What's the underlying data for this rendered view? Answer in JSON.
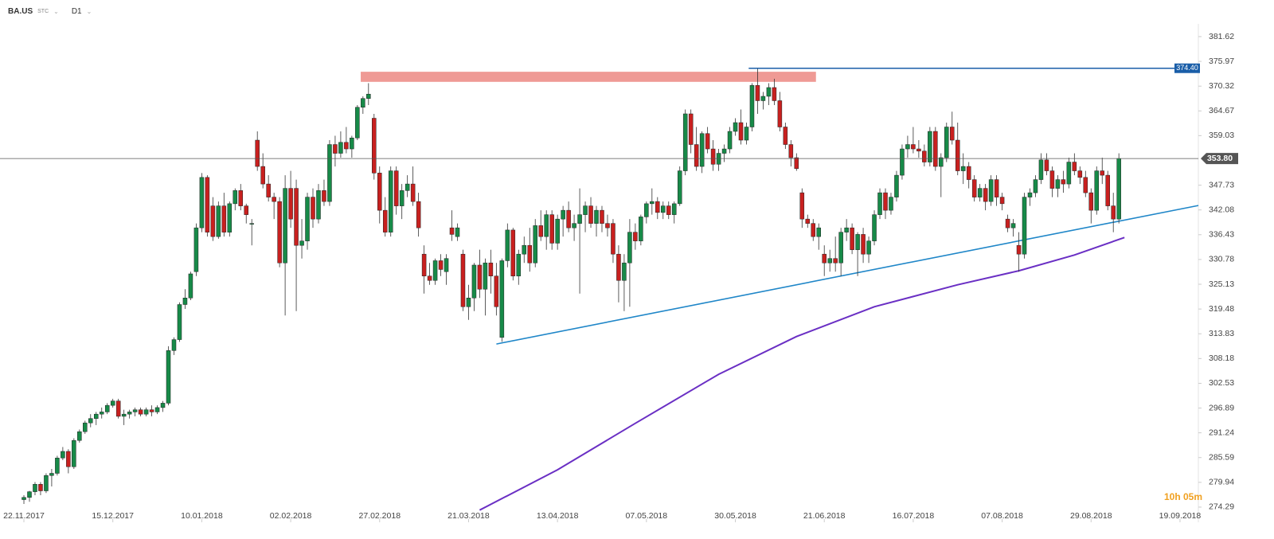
{
  "header": {
    "symbol": "BA.US",
    "tag": "STC",
    "timeframe": "D1"
  },
  "timer": "10h 05m",
  "chart_data": {
    "type": "candlestick",
    "up_color": "#178a48",
    "down_color": "#c8201f",
    "xlim": [
      -4.3,
      211.3
    ],
    "ylim": [
      270.83,
      389.97
    ],
    "xticks": [
      {
        "value": 0,
        "label": "22.11.2017"
      },
      {
        "value": 16,
        "label": "15.12.2017"
      },
      {
        "value": 32,
        "label": "10.01.2018"
      },
      {
        "value": 48,
        "label": "02.02.2018"
      },
      {
        "value": 64,
        "label": "27.02.2018"
      },
      {
        "value": 80,
        "label": "21.03.2018"
      },
      {
        "value": 96,
        "label": "13.04.2018"
      },
      {
        "value": 112,
        "label": "07.05.2018"
      },
      {
        "value": 128,
        "label": "30.05.2018"
      },
      {
        "value": 144,
        "label": "21.06.2018"
      },
      {
        "value": 160,
        "label": "16.07.2018"
      },
      {
        "value": 176,
        "label": "07.08.2018"
      },
      {
        "value": 192,
        "label": "29.08.2018"
      },
      {
        "value": 208,
        "label": "19.09.2018"
      }
    ],
    "yticks": [
      381.62,
      375.97,
      370.32,
      364.67,
      359.03,
      347.73,
      342.08,
      336.43,
      330.78,
      325.13,
      319.48,
      313.83,
      308.18,
      302.53,
      296.89,
      291.24,
      285.59,
      279.94,
      274.29
    ],
    "candles": [
      [
        276,
        277,
        275,
        276.5
      ],
      [
        276.5,
        278,
        275.5,
        277.8
      ],
      [
        277.8,
        280,
        277,
        279.5
      ],
      [
        279.5,
        280,
        277,
        278
      ],
      [
        278,
        282,
        277.5,
        281.5
      ],
      [
        281.5,
        283,
        279,
        282
      ],
      [
        282,
        286,
        281.5,
        285.5
      ],
      [
        285.5,
        288,
        285,
        287
      ],
      [
        287,
        287.5,
        282,
        283.5
      ],
      [
        283.5,
        290,
        283,
        289.5
      ],
      [
        289.5,
        292,
        289,
        291.5
      ],
      [
        291.5,
        294,
        291,
        293.5
      ],
      [
        293.5,
        295.5,
        292.5,
        294.5
      ],
      [
        294.5,
        296,
        293,
        295.5
      ],
      [
        295.5,
        297,
        294.5,
        296
      ],
      [
        296,
        298,
        295.5,
        297.5
      ],
      [
        297.5,
        299,
        297,
        298.5
      ],
      [
        298.5,
        299,
        294.5,
        295
      ],
      [
        295,
        296.5,
        293,
        295.5
      ],
      [
        295.5,
        296.5,
        294.5,
        296
      ],
      [
        296,
        297,
        295,
        296.5
      ],
      [
        296.5,
        297,
        295,
        295.5
      ],
      [
        295.5,
        297,
        295,
        296.5
      ],
      [
        296.5,
        297.5,
        295,
        296
      ],
      [
        296,
        297.5,
        295.5,
        297
      ],
      [
        297,
        298.5,
        296,
        298
      ],
      [
        298,
        311,
        297.5,
        310
      ],
      [
        310,
        313,
        309,
        312.5
      ],
      [
        312.5,
        321,
        312,
        320.5
      ],
      [
        320.5,
        324,
        319.5,
        322
      ],
      [
        322,
        328,
        321.5,
        327.5
      ],
      [
        328,
        339,
        327,
        338
      ],
      [
        338,
        350.5,
        337,
        349.5
      ],
      [
        349.5,
        350,
        336,
        337
      ],
      [
        343,
        345,
        335,
        336
      ],
      [
        336,
        344,
        335.5,
        343
      ],
      [
        343,
        346,
        336,
        337
      ],
      [
        337,
        344,
        336,
        343.5
      ],
      [
        343.5,
        347,
        342,
        346.5
      ],
      [
        346.5,
        348,
        342,
        343
      ],
      [
        343,
        343.5,
        339,
        341
      ],
      [
        339,
        340,
        334,
        339
      ],
      [
        358,
        360,
        351,
        352
      ],
      [
        352,
        355,
        347,
        348
      ],
      [
        348,
        350,
        344,
        345
      ],
      [
        345,
        346,
        340,
        344
      ],
      [
        344,
        345,
        329,
        330
      ],
      [
        330,
        350,
        318,
        347
      ],
      [
        347,
        351,
        338,
        340
      ],
      [
        347,
        349,
        319,
        334
      ],
      [
        334,
        340,
        331,
        335
      ],
      [
        335,
        346,
        333,
        345
      ],
      [
        345,
        347,
        338,
        340
      ],
      [
        340,
        348,
        339,
        346.5
      ],
      [
        346.5,
        349,
        343,
        344
      ],
      [
        344,
        358,
        343,
        357
      ],
      [
        357,
        359,
        352,
        355
      ],
      [
        355,
        360,
        354,
        357.5
      ],
      [
        357.5,
        361,
        355,
        356
      ],
      [
        356,
        359,
        354,
        358.5
      ],
      [
        358.5,
        366,
        358,
        365.5
      ],
      [
        365.5,
        368,
        364,
        367.5
      ],
      [
        367.5,
        371,
        366,
        368.5
      ],
      [
        363,
        364,
        349,
        350.5
      ],
      [
        350.5,
        352,
        339,
        342
      ],
      [
        342,
        345,
        336,
        337
      ],
      [
        337,
        352,
        336,
        351
      ],
      [
        351,
        352,
        341,
        343
      ],
      [
        343,
        348,
        340,
        346.5
      ],
      [
        346.5,
        350,
        345,
        348
      ],
      [
        348,
        352,
        343,
        344
      ],
      [
        344,
        346,
        336,
        338
      ],
      [
        332,
        334,
        323,
        327
      ],
      [
        327,
        330,
        325,
        326
      ],
      [
        326,
        331,
        325,
        330.5
      ],
      [
        330.5,
        332,
        327,
        328.5
      ],
      [
        328,
        332,
        325,
        331
      ],
      [
        338,
        342,
        335,
        336.5
      ],
      [
        336,
        339,
        335,
        338
      ],
      [
        332,
        333,
        319,
        320
      ],
      [
        320,
        325,
        317,
        322
      ],
      [
        322,
        330,
        319,
        329.5
      ],
      [
        329.5,
        333,
        322,
        324
      ],
      [
        324,
        331,
        318,
        330
      ],
      [
        330,
        333,
        323,
        327
      ],
      [
        327,
        330,
        318,
        320
      ],
      [
        313,
        331,
        312,
        330.5
      ],
      [
        330.5,
        339,
        329,
        337.5
      ],
      [
        337.5,
        338,
        326,
        327
      ],
      [
        327,
        333,
        325,
        332
      ],
      [
        332,
        336,
        330,
        334
      ],
      [
        334,
        338,
        328,
        330
      ],
      [
        330,
        340,
        329,
        338.5
      ],
      [
        338.5,
        342,
        335,
        336
      ],
      [
        336,
        342,
        333,
        341
      ],
      [
        341,
        342,
        333,
        334.5
      ],
      [
        334.5,
        341,
        333,
        340
      ],
      [
        340,
        343,
        336,
        342
      ],
      [
        342,
        344,
        337,
        338
      ],
      [
        338,
        341,
        335,
        339
      ],
      [
        339,
        347,
        323,
        341
      ],
      [
        341,
        344,
        337,
        343
      ],
      [
        343,
        345,
        338,
        339
      ],
      [
        339,
        343,
        336,
        342
      ],
      [
        342,
        343,
        337,
        339
      ],
      [
        339,
        341,
        336,
        338
      ],
      [
        339,
        340,
        330,
        332
      ],
      [
        332,
        334,
        321,
        326
      ],
      [
        326,
        332,
        319,
        330
      ],
      [
        330,
        340,
        320,
        337
      ],
      [
        337,
        339,
        333,
        335
      ],
      [
        335,
        341,
        334,
        340.5
      ],
      [
        340.5,
        344,
        339,
        343.5
      ],
      [
        343.5,
        347,
        341,
        344
      ],
      [
        344,
        345,
        340,
        341.5
      ],
      [
        341.5,
        344,
        340,
        343
      ],
      [
        343,
        344,
        340,
        341
      ],
      [
        341,
        344,
        339,
        343.5
      ],
      [
        343.5,
        352,
        343,
        351
      ],
      [
        351,
        365,
        350,
        364
      ],
      [
        364,
        365,
        355,
        357
      ],
      [
        357,
        361,
        351,
        352
      ],
      [
        352,
        360,
        350.5,
        359.5
      ],
      [
        359.5,
        361,
        355,
        356
      ],
      [
        356,
        358,
        351,
        352.5
      ],
      [
        352.5,
        356,
        351,
        355
      ],
      [
        355,
        357,
        353,
        356
      ],
      [
        356,
        361,
        355,
        360
      ],
      [
        360,
        363,
        359,
        362
      ],
      [
        362,
        365,
        357,
        358
      ],
      [
        358,
        362,
        357,
        361
      ],
      [
        361,
        371,
        360,
        370.5
      ],
      [
        370.5,
        374.4,
        364,
        367
      ],
      [
        367,
        369,
        365,
        368
      ],
      [
        368,
        371,
        366,
        370
      ],
      [
        370,
        372,
        366,
        367
      ],
      [
        367,
        369,
        360,
        361
      ],
      [
        361,
        362,
        356,
        357
      ],
      [
        357,
        358,
        352,
        354
      ],
      [
        354,
        355,
        351,
        351.5
      ],
      [
        346,
        347,
        338,
        340
      ],
      [
        340,
        341,
        338,
        339
      ],
      [
        339,
        340,
        335,
        336
      ],
      [
        336,
        339,
        333,
        338
      ],
      [
        332,
        334,
        327,
        330
      ],
      [
        330,
        333,
        328,
        331
      ],
      [
        331,
        336,
        328,
        330
      ],
      [
        330,
        338,
        327,
        337
      ],
      [
        337,
        340,
        335,
        338
      ],
      [
        338,
        339,
        332,
        333
      ],
      [
        333,
        337,
        327,
        336.5
      ],
      [
        336.5,
        338,
        330,
        332
      ],
      [
        332,
        336,
        330,
        335
      ],
      [
        335,
        342,
        334,
        341
      ],
      [
        341,
        347,
        340,
        346
      ],
      [
        346,
        347,
        340,
        342
      ],
      [
        342,
        346,
        341,
        345
      ],
      [
        345,
        351,
        344,
        350
      ],
      [
        350,
        357,
        349,
        356
      ],
      [
        356,
        359,
        354,
        357
      ],
      [
        357,
        361,
        355,
        356
      ],
      [
        356,
        358,
        354,
        355.5
      ],
      [
        355.5,
        357,
        352,
        353
      ],
      [
        353,
        361,
        352,
        360
      ],
      [
        360,
        361,
        351,
        352
      ],
      [
        352,
        355,
        345,
        354
      ],
      [
        354,
        362,
        353,
        361
      ],
      [
        361,
        364.5,
        357,
        358
      ],
      [
        358,
        362,
        350,
        351
      ],
      [
        351,
        355,
        348,
        352
      ],
      [
        352,
        353,
        347,
        349
      ],
      [
        349,
        350,
        344,
        345
      ],
      [
        345,
        348,
        344,
        347
      ],
      [
        347,
        348,
        342,
        344
      ],
      [
        344,
        350,
        343,
        349
      ],
      [
        349,
        350,
        343,
        345
      ],
      [
        345,
        346,
        342,
        343.5
      ],
      [
        340,
        341,
        337,
        338
      ],
      [
        338,
        340,
        336,
        339
      ],
      [
        334,
        337,
        328,
        332
      ],
      [
        332,
        346,
        331,
        345
      ],
      [
        345,
        347,
        343,
        346
      ],
      [
        346,
        350,
        345,
        349
      ],
      [
        349,
        355,
        348,
        353.5
      ],
      [
        353.5,
        355,
        350,
        351
      ],
      [
        351,
        352,
        345,
        347
      ],
      [
        347,
        350,
        345,
        349
      ],
      [
        349,
        351,
        346,
        348
      ],
      [
        348,
        354,
        347,
        353
      ],
      [
        353,
        355,
        350,
        351
      ],
      [
        351,
        352,
        348,
        349.5
      ],
      [
        349.5,
        351,
        345,
        346
      ],
      [
        346,
        347,
        339,
        342
      ],
      [
        342,
        352,
        341,
        351
      ],
      [
        351,
        354,
        348,
        350
      ],
      [
        350,
        351,
        342,
        343
      ],
      [
        343,
        346,
        337,
        340
      ],
      [
        340,
        355,
        339,
        353.8
      ]
    ],
    "sma": {
      "color": "#6a2fc4",
      "x": [
        82,
        96,
        110,
        125,
        139,
        153,
        168,
        179,
        189,
        198
      ],
      "values": [
        273.6,
        282.8,
        293.4,
        304.6,
        313.2,
        320.0,
        325.0,
        328.2,
        331.8,
        335.8
      ]
    },
    "trendline": {
      "color": "#1f86c8",
      "x": [
        85,
        211.3
      ],
      "values": [
        311.5,
        343.1
      ]
    },
    "zone": {
      "color": "#ef9a95",
      "x": [
        60.6,
        142.5
      ],
      "values": [
        371.3,
        373.6
      ]
    },
    "price_lines": [
      {
        "value": 374.4,
        "label": "374.40",
        "color": "#1a5ea8",
        "from": 130.4
      },
      {
        "value": 353.8,
        "label": "353.80",
        "color": "#555555",
        "from": -4.3
      }
    ]
  }
}
